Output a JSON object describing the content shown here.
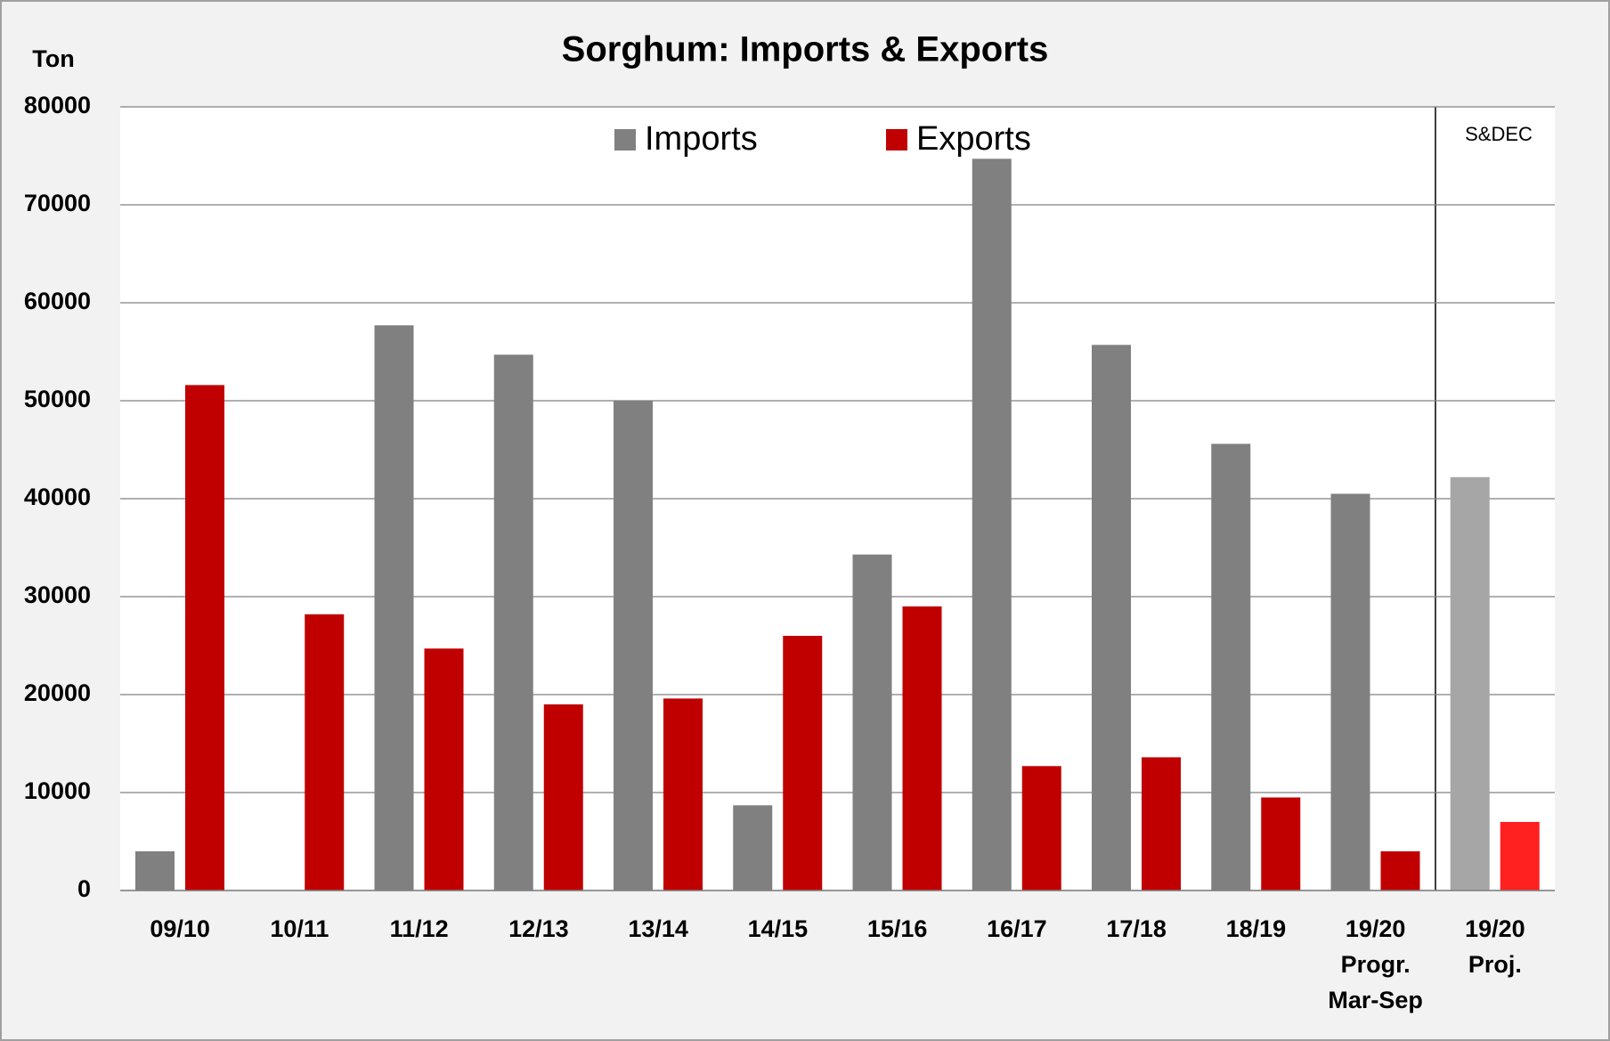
{
  "chart_data": {
    "type": "bar",
    "title": "Sorghum: Imports & Exports",
    "ylabel": "Ton",
    "annotation": "S&DEC",
    "categories": [
      [
        "09/10"
      ],
      [
        "10/11"
      ],
      [
        "11/12"
      ],
      [
        "12/13"
      ],
      [
        "13/14"
      ],
      [
        "14/15"
      ],
      [
        "15/16"
      ],
      [
        "16/17"
      ],
      [
        "17/18"
      ],
      [
        "18/19"
      ],
      [
        "19/20",
        "Progr.",
        "Mar-Sep"
      ],
      [
        "19/20",
        "Proj."
      ]
    ],
    "series": [
      {
        "name": "Imports",
        "color": "#808080",
        "colors": [
          "#808080",
          "#808080",
          "#808080",
          "#808080",
          "#808080",
          "#808080",
          "#808080",
          "#808080",
          "#808080",
          "#808080",
          "#808080",
          "#a6a6a6"
        ],
        "values": [
          4000,
          0,
          57700,
          54700,
          50000,
          8700,
          34300,
          74700,
          55700,
          45600,
          40500,
          42200
        ]
      },
      {
        "name": "Exports",
        "color": "#c00000",
        "colors": [
          "#c00000",
          "#c00000",
          "#c00000",
          "#c00000",
          "#c00000",
          "#c00000",
          "#c00000",
          "#c00000",
          "#c00000",
          "#c00000",
          "#c00000",
          "#ff2020"
        ],
        "values": [
          51600,
          28200,
          24700,
          19000,
          19600,
          26000,
          29000,
          12700,
          13600,
          9500,
          4000,
          7000
        ]
      }
    ],
    "ylim": [
      0,
      80000
    ],
    "yticks": [
      0,
      10000,
      20000,
      30000,
      40000,
      50000,
      60000,
      70000,
      80000
    ],
    "grid": true,
    "legend": "top"
  }
}
